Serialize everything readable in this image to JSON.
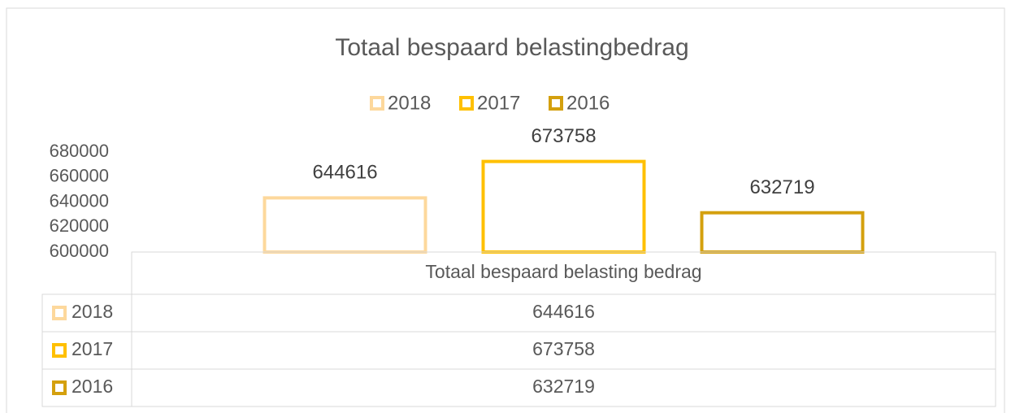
{
  "chart_data": {
    "type": "bar",
    "title": "Totaal bespaard belastingbedrag",
    "categories": [
      "Totaal bespaard belasting bedrag"
    ],
    "series": [
      {
        "name": "2018",
        "color": "#fdd89c",
        "values": [
          644616
        ]
      },
      {
        "name": "2017",
        "color": "#ffc000",
        "values": [
          673758
        ]
      },
      {
        "name": "2016",
        "color": "#d4a00e",
        "values": [
          632719
        ]
      }
    ],
    "ylim": [
      600000,
      680000
    ],
    "yticks": [
      600000,
      620000,
      640000,
      660000,
      680000
    ],
    "grid": false,
    "legend": "top",
    "bar_style": "outline",
    "data_table": true
  }
}
